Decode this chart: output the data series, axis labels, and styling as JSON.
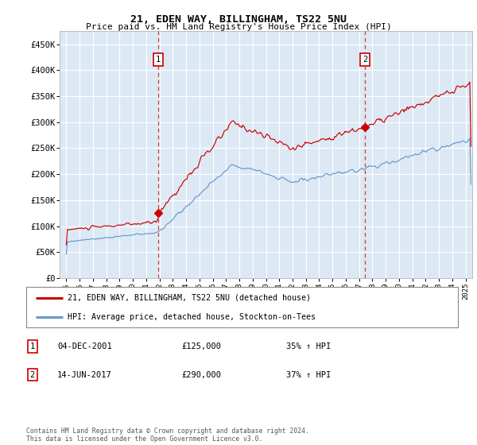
{
  "title": "21, EDEN WAY, BILLINGHAM, TS22 5NU",
  "subtitle": "Price paid vs. HM Land Registry's House Price Index (HPI)",
  "ylabel_ticks": [
    "£0",
    "£50K",
    "£100K",
    "£150K",
    "£200K",
    "£250K",
    "£300K",
    "£350K",
    "£400K",
    "£450K"
  ],
  "ytick_values": [
    0,
    50000,
    100000,
    150000,
    200000,
    250000,
    300000,
    350000,
    400000,
    450000
  ],
  "ylim": [
    0,
    475000
  ],
  "xlim_start": 1994.5,
  "xlim_end": 2025.5,
  "plot_bg_color": "#dce9f5",
  "grid_color": "#ffffff",
  "red_line_color": "#cc0000",
  "blue_line_color": "#6699cc",
  "sale1_x": 2001.92,
  "sale1_y": 125000,
  "sale1_label": "1",
  "sale1_date": "04-DEC-2001",
  "sale1_price": "£125,000",
  "sale1_hpi": "35% ↑ HPI",
  "sale2_x": 2017.45,
  "sale2_y": 290000,
  "sale2_label": "2",
  "sale2_date": "14-JUN-2017",
  "sale2_price": "£290,000",
  "sale2_hpi": "37% ↑ HPI",
  "legend_line1": "21, EDEN WAY, BILLINGHAM, TS22 5NU (detached house)",
  "legend_line2": "HPI: Average price, detached house, Stockton-on-Tees",
  "footer": "Contains HM Land Registry data © Crown copyright and database right 2024.\nThis data is licensed under the Open Government Licence v3.0.",
  "xtick_years": [
    1995,
    1996,
    1997,
    1998,
    1999,
    2000,
    2001,
    2002,
    2003,
    2004,
    2005,
    2006,
    2007,
    2008,
    2009,
    2010,
    2011,
    2012,
    2013,
    2014,
    2015,
    2016,
    2017,
    2018,
    2019,
    2020,
    2021,
    2022,
    2023,
    2024,
    2025
  ]
}
